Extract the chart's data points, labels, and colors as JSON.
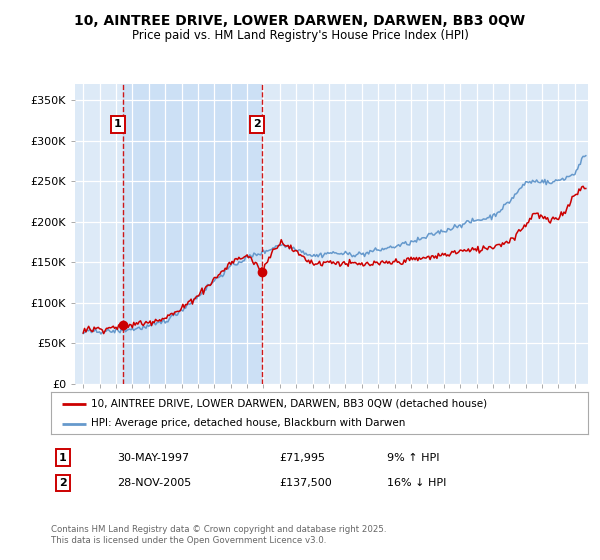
{
  "title": "10, AINTREE DRIVE, LOWER DARWEN, DARWEN, BB3 0QW",
  "subtitle": "Price paid vs. HM Land Registry's House Price Index (HPI)",
  "legend_line1": "10, AINTREE DRIVE, LOWER DARWEN, DARWEN, BB3 0QW (detached house)",
  "legend_line2": "HPI: Average price, detached house, Blackburn with Darwen",
  "annotation1_label": "1",
  "annotation1_date": "30-MAY-1997",
  "annotation1_price": "£71,995",
  "annotation1_hpi": "9% ↑ HPI",
  "annotation2_label": "2",
  "annotation2_date": "28-NOV-2005",
  "annotation2_price": "£137,500",
  "annotation2_hpi": "16% ↓ HPI",
  "footer": "Contains HM Land Registry data © Crown copyright and database right 2025.\nThis data is licensed under the Open Government Licence v3.0.",
  "house_color": "#cc0000",
  "hpi_color": "#6699cc",
  "background_color": "#ddeaf7",
  "shade_color": "#cce0f5",
  "annotation_box_color": "#cc0000",
  "sale1_x": 1997.41,
  "sale1_y": 71995,
  "sale2_x": 2005.91,
  "sale2_y": 137500,
  "ylim": [
    0,
    370000
  ],
  "xlim_start": 1994.5,
  "xlim_end": 2025.8
}
